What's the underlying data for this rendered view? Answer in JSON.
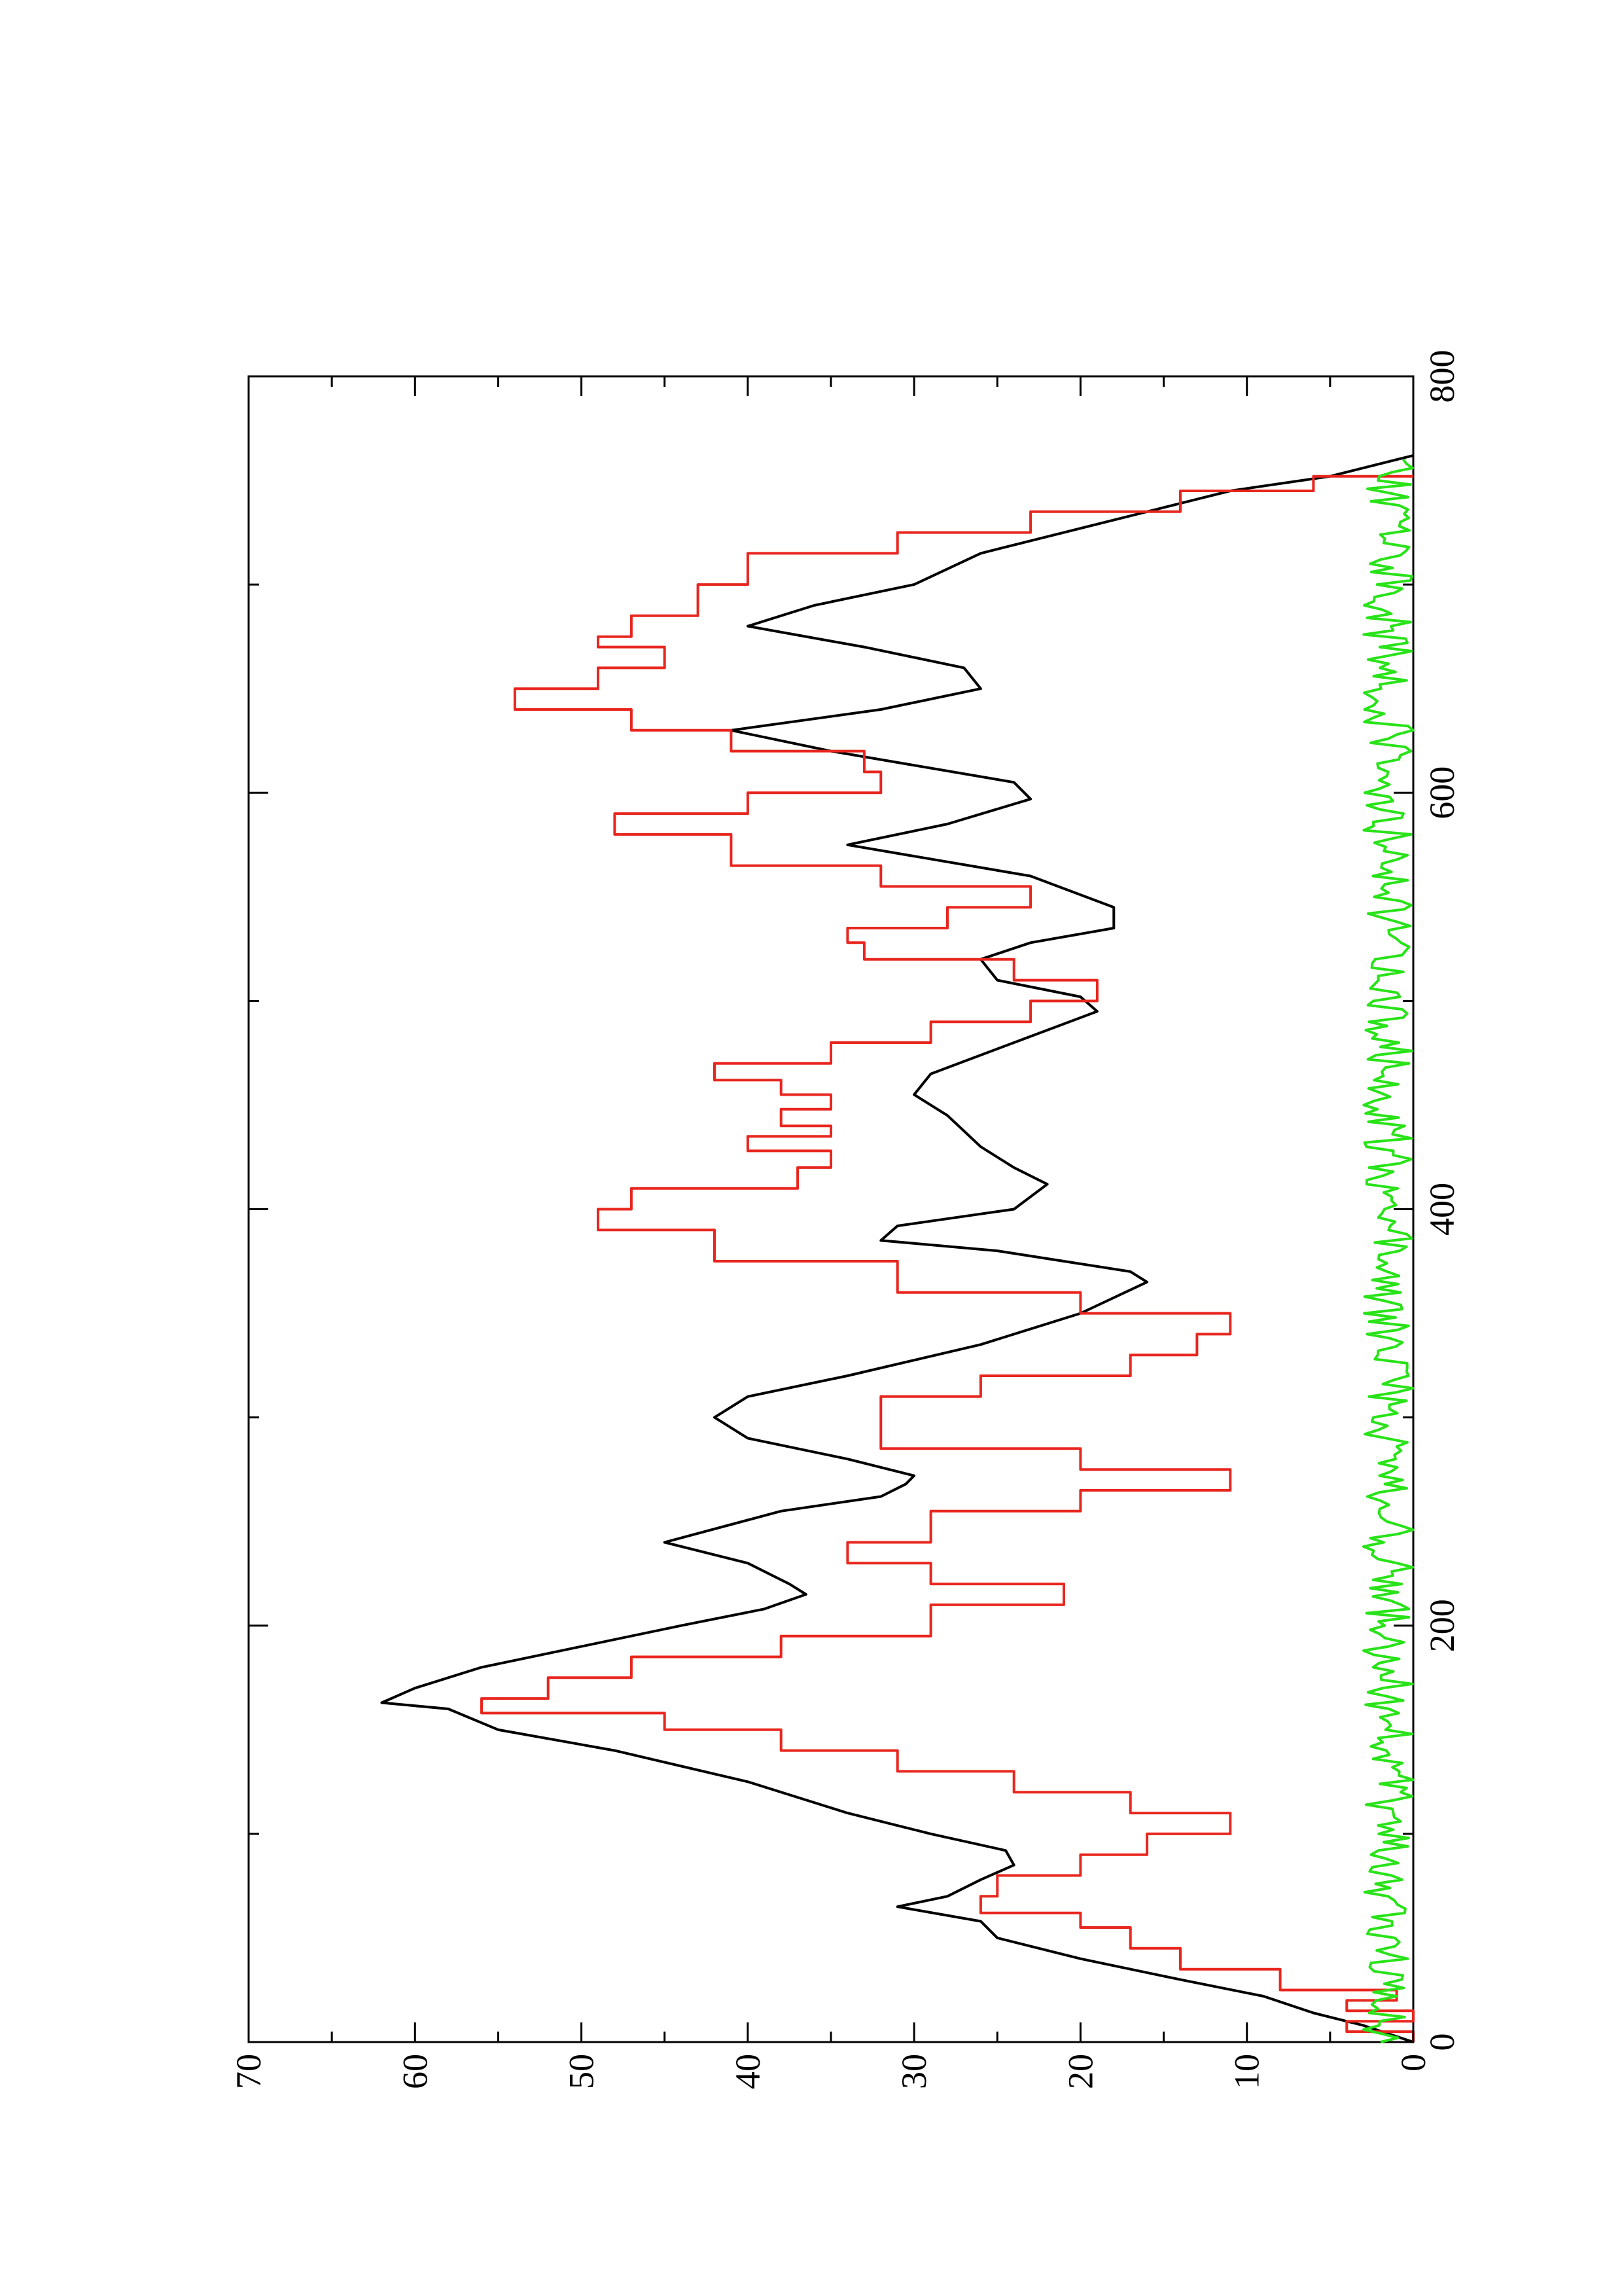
{
  "chart_data": {
    "type": "line",
    "orientation": "rotated-90-ccw",
    "title": "",
    "xlabel": "",
    "ylabel": "",
    "xlim": [
      0,
      800
    ],
    "ylim": [
      0,
      70
    ],
    "x_ticks": [
      0,
      200,
      400,
      600,
      800
    ],
    "x_tick_labels": [
      "0",
      "200",
      "400",
      "600",
      "800"
    ],
    "x_minor_ticks": [
      100,
      300,
      500,
      700
    ],
    "y_ticks": [
      0,
      10,
      20,
      30,
      40,
      50,
      60,
      70
    ],
    "y_tick_labels": [
      "0",
      "10",
      "20",
      "30",
      "40",
      "50",
      "60",
      "70"
    ],
    "y_minor_ticks": [
      5,
      15,
      25,
      35,
      45,
      55,
      65
    ],
    "grid": false,
    "legend": "none",
    "series": [
      {
        "color": "#000000",
        "style": "smooth",
        "points": [
          [
            0,
            0
          ],
          [
            8,
            3
          ],
          [
            14,
            6
          ],
          [
            22,
            9
          ],
          [
            30,
            14
          ],
          [
            40,
            20
          ],
          [
            50,
            25
          ],
          [
            58,
            26
          ],
          [
            65,
            31
          ],
          [
            70,
            28
          ],
          [
            78,
            26
          ],
          [
            85,
            24
          ],
          [
            92,
            24.5
          ],
          [
            100,
            29
          ],
          [
            110,
            34
          ],
          [
            125,
            40
          ],
          [
            140,
            48
          ],
          [
            150,
            55
          ],
          [
            160,
            58
          ],
          [
            163,
            62
          ],
          [
            170,
            60
          ],
          [
            180,
            56
          ],
          [
            190,
            50
          ],
          [
            200,
            44
          ],
          [
            208,
            39
          ],
          [
            215,
            36.5
          ],
          [
            220,
            37.5
          ],
          [
            230,
            40
          ],
          [
            240,
            45
          ],
          [
            255,
            38
          ],
          [
            262,
            32
          ],
          [
            268,
            30.5
          ],
          [
            272,
            30
          ],
          [
            280,
            34
          ],
          [
            290,
            40
          ],
          [
            300,
            42
          ],
          [
            310,
            40
          ],
          [
            320,
            34
          ],
          [
            335,
            26
          ],
          [
            350,
            20
          ],
          [
            365,
            16
          ],
          [
            370,
            17
          ],
          [
            380,
            25
          ],
          [
            385,
            32
          ],
          [
            392,
            31
          ],
          [
            400,
            24
          ],
          [
            412,
            22
          ],
          [
            420,
            24
          ],
          [
            430,
            26
          ],
          [
            445,
            28
          ],
          [
            455,
            30
          ],
          [
            465,
            29
          ],
          [
            480,
            24
          ],
          [
            495,
            19
          ],
          [
            502,
            20
          ],
          [
            510,
            25
          ],
          [
            520,
            26
          ],
          [
            528,
            23
          ],
          [
            535,
            18
          ],
          [
            545,
            18
          ],
          [
            560,
            23
          ],
          [
            575,
            34
          ],
          [
            585,
            28
          ],
          [
            597,
            23
          ],
          [
            605,
            24
          ],
          [
            620,
            35
          ],
          [
            630,
            41
          ],
          [
            640,
            32
          ],
          [
            650,
            26
          ],
          [
            660,
            27
          ],
          [
            670,
            33
          ],
          [
            680,
            40
          ],
          [
            690,
            36
          ],
          [
            700,
            30
          ],
          [
            715,
            26
          ],
          [
            725,
            21
          ],
          [
            735,
            16
          ],
          [
            745,
            11
          ],
          [
            752,
            5
          ],
          [
            760,
            1
          ],
          [
            762,
            0
          ]
        ]
      },
      {
        "color": "#e8261e",
        "style": "stairs",
        "points": [
          [
            0,
            0
          ],
          [
            5,
            4
          ],
          [
            10,
            0
          ],
          [
            15,
            4
          ],
          [
            20,
            1
          ],
          [
            25,
            8
          ],
          [
            35,
            14
          ],
          [
            45,
            17
          ],
          [
            55,
            20
          ],
          [
            62,
            26
          ],
          [
            70,
            25
          ],
          [
            80,
            20
          ],
          [
            90,
            16
          ],
          [
            100,
            11
          ],
          [
            110,
            17
          ],
          [
            120,
            24
          ],
          [
            130,
            31
          ],
          [
            140,
            38
          ],
          [
            150,
            45
          ],
          [
            158,
            56
          ],
          [
            165,
            52
          ],
          [
            175,
            47
          ],
          [
            185,
            38
          ],
          [
            195,
            29
          ],
          [
            210,
            21
          ],
          [
            220,
            29
          ],
          [
            230,
            34
          ],
          [
            240,
            29
          ],
          [
            255,
            20
          ],
          [
            265,
            11
          ],
          [
            275,
            20
          ],
          [
            285,
            32
          ],
          [
            300,
            32
          ],
          [
            310,
            26
          ],
          [
            320,
            17
          ],
          [
            330,
            13
          ],
          [
            340,
            11
          ],
          [
            350,
            20
          ],
          [
            360,
            31
          ],
          [
            375,
            42
          ],
          [
            390,
            49
          ],
          [
            400,
            47
          ],
          [
            410,
            37
          ],
          [
            420,
            35
          ],
          [
            428,
            40
          ],
          [
            435,
            35
          ],
          [
            440,
            38
          ],
          [
            448,
            35
          ],
          [
            455,
            38
          ],
          [
            462,
            42
          ],
          [
            470,
            35
          ],
          [
            480,
            29
          ],
          [
            490,
            23
          ],
          [
            500,
            19
          ],
          [
            510,
            24
          ],
          [
            520,
            33
          ],
          [
            528,
            34
          ],
          [
            535,
            28
          ],
          [
            545,
            23
          ],
          [
            555,
            32
          ],
          [
            565,
            41
          ],
          [
            580,
            48
          ],
          [
            590,
            40
          ],
          [
            600,
            32
          ],
          [
            610,
            33
          ],
          [
            620,
            41
          ],
          [
            630,
            47
          ],
          [
            640,
            54
          ],
          [
            650,
            49
          ],
          [
            660,
            45
          ],
          [
            670,
            49
          ],
          [
            675,
            47
          ],
          [
            685,
            43
          ],
          [
            700,
            40
          ],
          [
            715,
            31
          ],
          [
            725,
            23
          ],
          [
            735,
            14
          ],
          [
            745,
            6
          ],
          [
            752,
            0
          ]
        ]
      },
      {
        "color": "#29e219",
        "style": "noise",
        "y_range": [
          0,
          3
        ],
        "x_range": [
          0,
          760
        ],
        "step": 2
      }
    ]
  }
}
